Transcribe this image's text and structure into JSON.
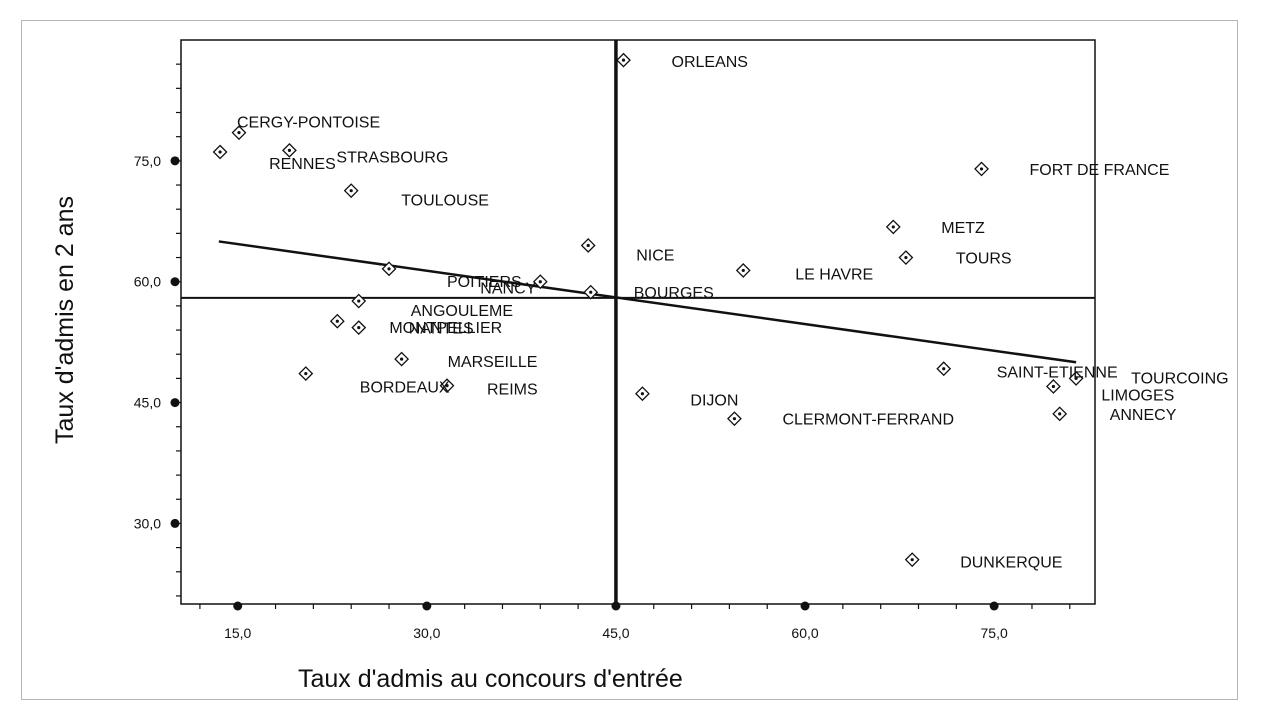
{
  "chart_data": {
    "type": "scatter",
    "title": "",
    "xlabel": "Taux d'admis au concours d'entrée",
    "ylabel": "Taux d'admis en 2 ans",
    "xlim": [
      10.5,
      83
    ],
    "ylim": [
      20,
      90
    ],
    "x_ticks": [
      15,
      30,
      45,
      60,
      75
    ],
    "x_tick_labels": [
      "15,0",
      "30,0",
      "45,0",
      "60,0",
      "75,0"
    ],
    "y_ticks": [
      30,
      45,
      60,
      75
    ],
    "y_tick_labels": [
      "30,0",
      "45,0",
      "60,0",
      "75,0"
    ],
    "grid": false,
    "mean_lines": {
      "x": 45,
      "y": 58
    },
    "trend_line": {
      "x": [
        13.5,
        81.5
      ],
      "y": [
        65,
        50
      ]
    },
    "points": [
      {
        "label": "ORLEANS",
        "x": 45.6,
        "y": 87.5
      },
      {
        "label": "CERGY-PONTOISE",
        "x": 15.1,
        "y": 78.5
      },
      {
        "label": "RENNES",
        "x": 13.6,
        "y": 76.1
      },
      {
        "label": "STRASBOURG",
        "x": 19.1,
        "y": 76.3
      },
      {
        "label": "TOULOUSE",
        "x": 24.0,
        "y": 71.3
      },
      {
        "label": "FORT DE FRANCE",
        "x": 74.0,
        "y": 74.0
      },
      {
        "label": "METZ",
        "x": 67.0,
        "y": 66.8
      },
      {
        "label": "TOURS",
        "x": 68.0,
        "y": 63.0
      },
      {
        "label": "NICE",
        "x": 42.8,
        "y": 64.5
      },
      {
        "label": "LE HAVRE",
        "x": 55.1,
        "y": 61.4
      },
      {
        "label": "POITIERS",
        "x": 27.0,
        "y": 61.6
      },
      {
        "label": "NANCY",
        "x": 39.0,
        "y": 60.0
      },
      {
        "label": "BOURGES",
        "x": 43.0,
        "y": 58.7
      },
      {
        "label": "ANGOULEME",
        "x": 24.6,
        "y": 57.6
      },
      {
        "label": "MONTPELLIER",
        "x": 22.9,
        "y": 55.1
      },
      {
        "label": "NANTES",
        "x": 24.6,
        "y": 54.3
      },
      {
        "label": "MARSEILLE",
        "x": 28.0,
        "y": 50.4
      },
      {
        "label": "BORDEAUX",
        "x": 20.4,
        "y": 48.6
      },
      {
        "label": "REIMS",
        "x": 31.6,
        "y": 47.1
      },
      {
        "label": "DIJON",
        "x": 47.1,
        "y": 46.1
      },
      {
        "label": "CLERMONT-FERRAND",
        "x": 54.4,
        "y": 43.0
      },
      {
        "label": "SAINT-ETIENNE",
        "x": 71.0,
        "y": 49.2
      },
      {
        "label": "TOURCOING",
        "x": 81.5,
        "y": 48.0
      },
      {
        "label": "LIMOGES",
        "x": 79.7,
        "y": 47.0
      },
      {
        "label": "ANNECY",
        "x": 80.2,
        "y": 43.6
      },
      {
        "label": "DUNKERQUE",
        "x": 68.5,
        "y": 25.5
      }
    ]
  }
}
